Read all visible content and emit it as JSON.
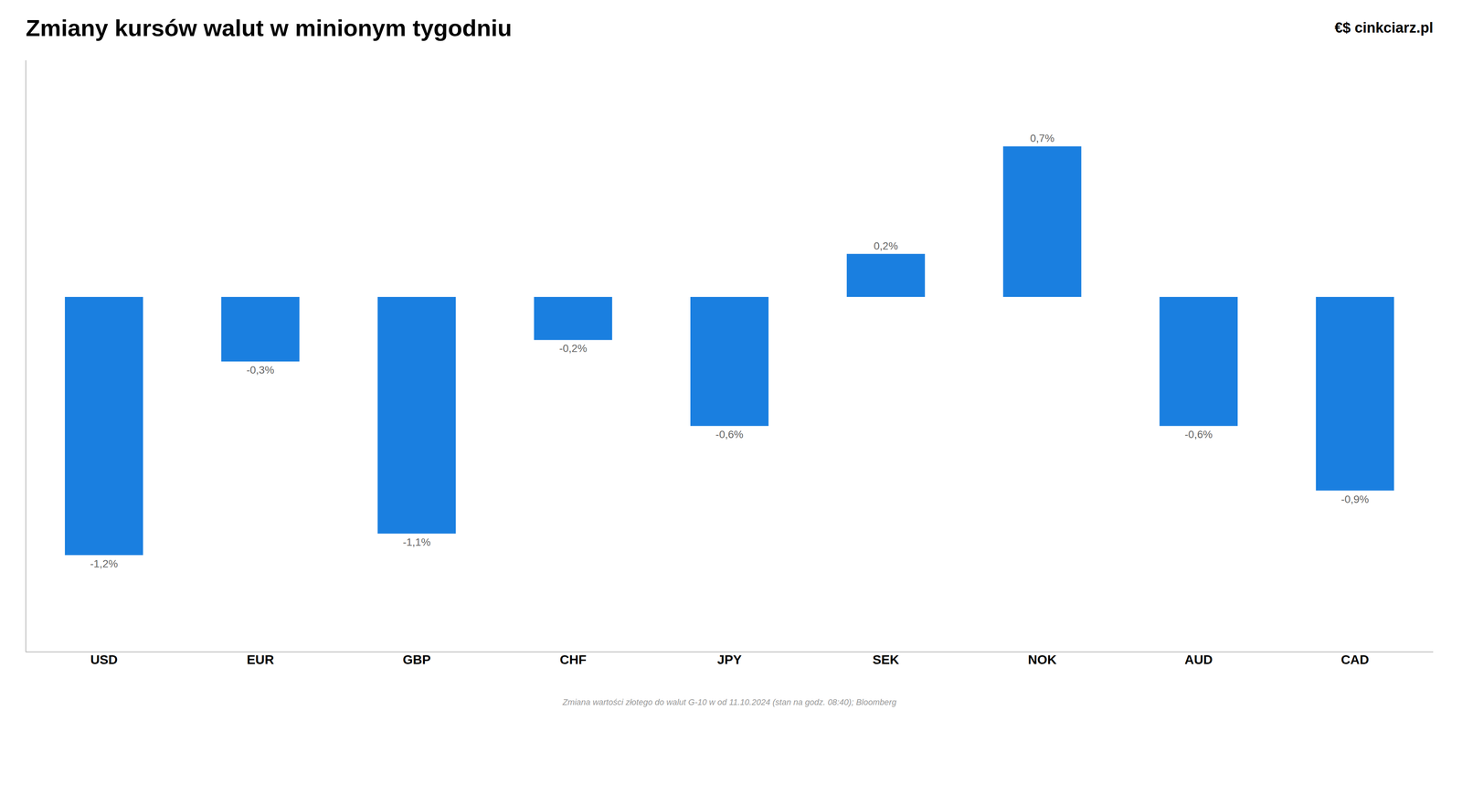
{
  "chart_data": {
    "type": "bar",
    "title": "Zmiany kursów walut w minionym tygodniu",
    "subtitle": "Zmiana wartości złotego do walut G-10 w od 11.10.2024 (stan na godz. 08:40); Bloomberg",
    "annotations": [
      "€$ cinkciarz.pl"
    ],
    "categories": [
      "USD",
      "EUR",
      "GBP",
      "CHF",
      "JPY",
      "SEK",
      "NOK",
      "AUD",
      "CAD"
    ],
    "values": [
      -1.2,
      -0.3,
      -1.1,
      -0.2,
      -0.6,
      0.2,
      0.7,
      -0.6,
      -0.9
    ],
    "value_labels": [
      "-1,2%",
      "-0,3%",
      "-1,1%",
      "-0,2%",
      "-0,6%",
      "0,2%",
      "0,7%",
      "-0,6%",
      "-0,9%"
    ],
    "color": "#1a7fe0",
    "ylim": [
      -1.65,
      1.1
    ],
    "grid": false,
    "data_labels": true,
    "tick_labels": "x"
  }
}
